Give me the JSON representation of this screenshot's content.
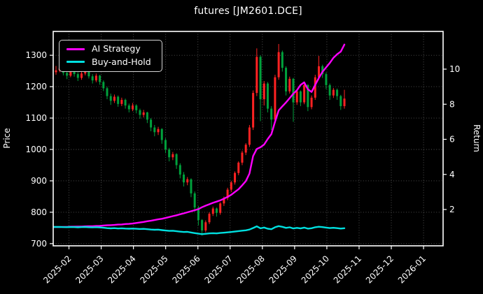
{
  "title": "futures [JM2601.DCE]",
  "axes": {
    "y_left_label": "Price",
    "y_right_label": "Return",
    "y_left_ticks": [
      "700",
      "800",
      "900",
      "1000",
      "1100",
      "1200",
      "1300"
    ],
    "y_right_ticks": [
      "2",
      "4",
      "6",
      "8",
      "10"
    ],
    "x_ticks": [
      "2025-02",
      "2025-03",
      "2025-04",
      "2025-05",
      "2025-06",
      "2025-07",
      "2025-08",
      "2025-09",
      "2025-10",
      "2025-11",
      "2025-12",
      "2026-01"
    ]
  },
  "legend": {
    "items": [
      {
        "label": "AI Strategy",
        "color": "#ff00ff"
      },
      {
        "label": "Buy-and-Hold",
        "color": "#00e0e0"
      }
    ]
  },
  "colors": {
    "background": "#000000",
    "text": "#ffffff",
    "grid": "#565656",
    "spine": "#ffffff",
    "candle_up": "#ff2222",
    "candle_down": "#00a13c",
    "ai_line": "#ff00ff",
    "bh_line": "#00e0e0"
  },
  "chart_data": {
    "type": "candlestick+line",
    "title": "futures [JM2601.DCE]",
    "ylabel_left": "Price",
    "ylabel_right": "Return",
    "grid": "dotted",
    "legend_position": "upper-left",
    "price_axis": {
      "ticks": [
        700,
        800,
        900,
        1000,
        1100,
        1200,
        1300
      ],
      "ylim": [
        693,
        1376
      ]
    },
    "return_axis": {
      "ticks": [
        2,
        4,
        6,
        8,
        10
      ],
      "ylim": [
        -0.07,
        12.15
      ]
    },
    "x_axis": {
      "tick_labels": [
        "2025-02",
        "2025-03",
        "2025-04",
        "2025-05",
        "2025-06",
        "2025-07",
        "2025-08",
        "2025-09",
        "2025-10",
        "2025-11",
        "2025-12",
        "2026-01"
      ],
      "data_span_dates": [
        "2025-01-20",
        "2025-10-20"
      ],
      "first_tick_frac": 0.0404,
      "tick_step_frac": 0.08268,
      "candle_start_frac": 0.00718,
      "candle_end_frac": 0.74686
    },
    "candles_ohlc": [
      [
        1246,
        1266,
        1238,
        1252
      ],
      [
        1252,
        1270,
        1246,
        1258
      ],
      [
        1258,
        1262,
        1236,
        1244
      ],
      [
        1244,
        1252,
        1224,
        1235
      ],
      [
        1235,
        1254,
        1230,
        1248
      ],
      [
        1248,
        1256,
        1232,
        1240
      ],
      [
        1240,
        1246,
        1218,
        1228
      ],
      [
        1228,
        1248,
        1222,
        1242
      ],
      [
        1242,
        1260,
        1236,
        1251
      ],
      [
        1251,
        1255,
        1226,
        1233
      ],
      [
        1233,
        1240,
        1210,
        1220
      ],
      [
        1220,
        1242,
        1214,
        1235
      ],
      [
        1235,
        1238,
        1206,
        1215
      ],
      [
        1215,
        1220,
        1186,
        1195
      ],
      [
        1195,
        1200,
        1160,
        1170
      ],
      [
        1170,
        1178,
        1142,
        1155
      ],
      [
        1155,
        1175,
        1148,
        1168
      ],
      [
        1168,
        1172,
        1136,
        1145
      ],
      [
        1145,
        1165,
        1138,
        1158
      ],
      [
        1158,
        1162,
        1130,
        1140
      ],
      [
        1140,
        1146,
        1118,
        1128
      ],
      [
        1128,
        1148,
        1122,
        1140
      ],
      [
        1140,
        1144,
        1115,
        1125
      ],
      [
        1125,
        1130,
        1098,
        1110
      ],
      [
        1110,
        1126,
        1102,
        1118
      ],
      [
        1118,
        1120,
        1084,
        1095
      ],
      [
        1095,
        1100,
        1058,
        1070
      ],
      [
        1070,
        1078,
        1042,
        1055
      ],
      [
        1055,
        1072,
        1046,
        1065
      ],
      [
        1065,
        1068,
        1018,
        1030
      ],
      [
        1030,
        1036,
        988,
        1000
      ],
      [
        1000,
        1005,
        962,
        975
      ],
      [
        975,
        992,
        966,
        985
      ],
      [
        985,
        988,
        938,
        950
      ],
      [
        950,
        956,
        908,
        920
      ],
      [
        920,
        928,
        882,
        895
      ],
      [
        895,
        912,
        886,
        905
      ],
      [
        905,
        908,
        848,
        860
      ],
      [
        860,
        866,
        802,
        815
      ],
      [
        815,
        820,
        758,
        775
      ],
      [
        775,
        778,
        726,
        742
      ],
      [
        742,
        774,
        736,
        768
      ],
      [
        768,
        800,
        762,
        795
      ],
      [
        795,
        818,
        788,
        812
      ],
      [
        812,
        815,
        786,
        798
      ],
      [
        798,
        832,
        792,
        828
      ],
      [
        828,
        850,
        820,
        845
      ],
      [
        845,
        878,
        838,
        872
      ],
      [
        872,
        900,
        864,
        895
      ],
      [
        895,
        930,
        888,
        925
      ],
      [
        925,
        962,
        918,
        958
      ],
      [
        958,
        996,
        950,
        990
      ],
      [
        990,
        1020,
        982,
        1015
      ],
      [
        1015,
        1078,
        1008,
        1070
      ],
      [
        1070,
        1188,
        1062,
        1180
      ],
      [
        1180,
        1322,
        1170,
        1295
      ],
      [
        1295,
        1300,
        1090,
        1160
      ],
      [
        1160,
        1218,
        1140,
        1210
      ],
      [
        1210,
        1215,
        1118,
        1130
      ],
      [
        1130,
        1138,
        1062,
        1095
      ],
      [
        1095,
        1238,
        1088,
        1230
      ],
      [
        1230,
        1336,
        1222,
        1310
      ],
      [
        1310,
        1315,
        1248,
        1260
      ],
      [
        1260,
        1265,
        1172,
        1185
      ],
      [
        1185,
        1232,
        1178,
        1225
      ],
      [
        1225,
        1228,
        1088,
        1150
      ],
      [
        1150,
        1192,
        1142,
        1185
      ],
      [
        1185,
        1188,
        1138,
        1150
      ],
      [
        1150,
        1212,
        1144,
        1205
      ],
      [
        1205,
        1208,
        1122,
        1135
      ],
      [
        1135,
        1172,
        1128,
        1165
      ],
      [
        1165,
        1238,
        1158,
        1230
      ],
      [
        1230,
        1298,
        1222,
        1265
      ],
      [
        1265,
        1270,
        1228,
        1240
      ],
      [
        1240,
        1245,
        1192,
        1205
      ],
      [
        1205,
        1210,
        1158,
        1172
      ],
      [
        1172,
        1196,
        1164,
        1190
      ],
      [
        1190,
        1194,
        1158,
        1170
      ],
      [
        1170,
        1174,
        1126,
        1138
      ],
      [
        1138,
        1190,
        1130,
        1162
      ]
    ],
    "series": [
      {
        "name": "AI Strategy",
        "axis": "return",
        "color": "#ff00ff",
        "values": [
          1.0,
          1.0,
          1.01,
          1.01,
          1.02,
          1.02,
          1.03,
          1.03,
          1.04,
          1.05,
          1.05,
          1.06,
          1.07,
          1.09,
          1.1,
          1.11,
          1.12,
          1.14,
          1.15,
          1.17,
          1.18,
          1.2,
          1.23,
          1.26,
          1.29,
          1.33,
          1.36,
          1.4,
          1.44,
          1.47,
          1.52,
          1.57,
          1.62,
          1.67,
          1.73,
          1.78,
          1.84,
          1.9,
          1.96,
          2.02,
          2.13,
          2.22,
          2.3,
          2.38,
          2.45,
          2.52,
          2.62,
          2.72,
          2.84,
          3.0,
          3.16,
          3.38,
          3.62,
          4.05,
          5.05,
          5.45,
          5.55,
          5.7,
          6.02,
          6.3,
          7.0,
          7.65,
          7.88,
          8.1,
          8.35,
          8.6,
          8.8,
          9.1,
          9.25,
          8.85,
          8.7,
          9.1,
          9.5,
          9.85,
          10.1,
          10.35,
          10.65,
          10.85,
          11.0,
          11.4
        ]
      },
      {
        "name": "Buy-and-Hold",
        "axis": "return",
        "color": "#00e0e0",
        "values": [
          1.005,
          1.01,
          0.998,
          0.991,
          1.002,
          0.995,
          0.986,
          0.997,
          1.004,
          0.99,
          0.979,
          0.991,
          0.975,
          0.959,
          0.939,
          0.927,
          0.937,
          0.919,
          0.929,
          0.915,
          0.905,
          0.915,
          0.903,
          0.891,
          0.897,
          0.879,
          0.859,
          0.847,
          0.855,
          0.827,
          0.803,
          0.782,
          0.79,
          0.762,
          0.738,
          0.718,
          0.726,
          0.69,
          0.654,
          0.622,
          0.595,
          0.616,
          0.638,
          0.652,
          0.64,
          0.664,
          0.678,
          0.7,
          0.718,
          0.742,
          0.769,
          0.794,
          0.815,
          0.859,
          0.947,
          1.039,
          0.931,
          0.971,
          0.907,
          0.879,
          0.987,
          1.051,
          1.011,
          0.951,
          0.983,
          0.923,
          0.951,
          0.923,
          0.967,
          0.911,
          0.935,
          0.987,
          1.015,
          0.995,
          0.967,
          0.941,
          0.955,
          0.939,
          0.913,
          0.933
        ]
      }
    ]
  }
}
